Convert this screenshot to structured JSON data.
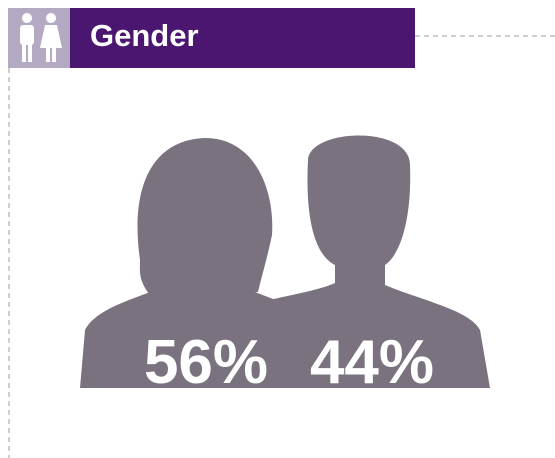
{
  "header": {
    "title": "Gender"
  },
  "stats": [
    {
      "label": "56%"
    },
    {
      "label": "44%"
    }
  ]
}
